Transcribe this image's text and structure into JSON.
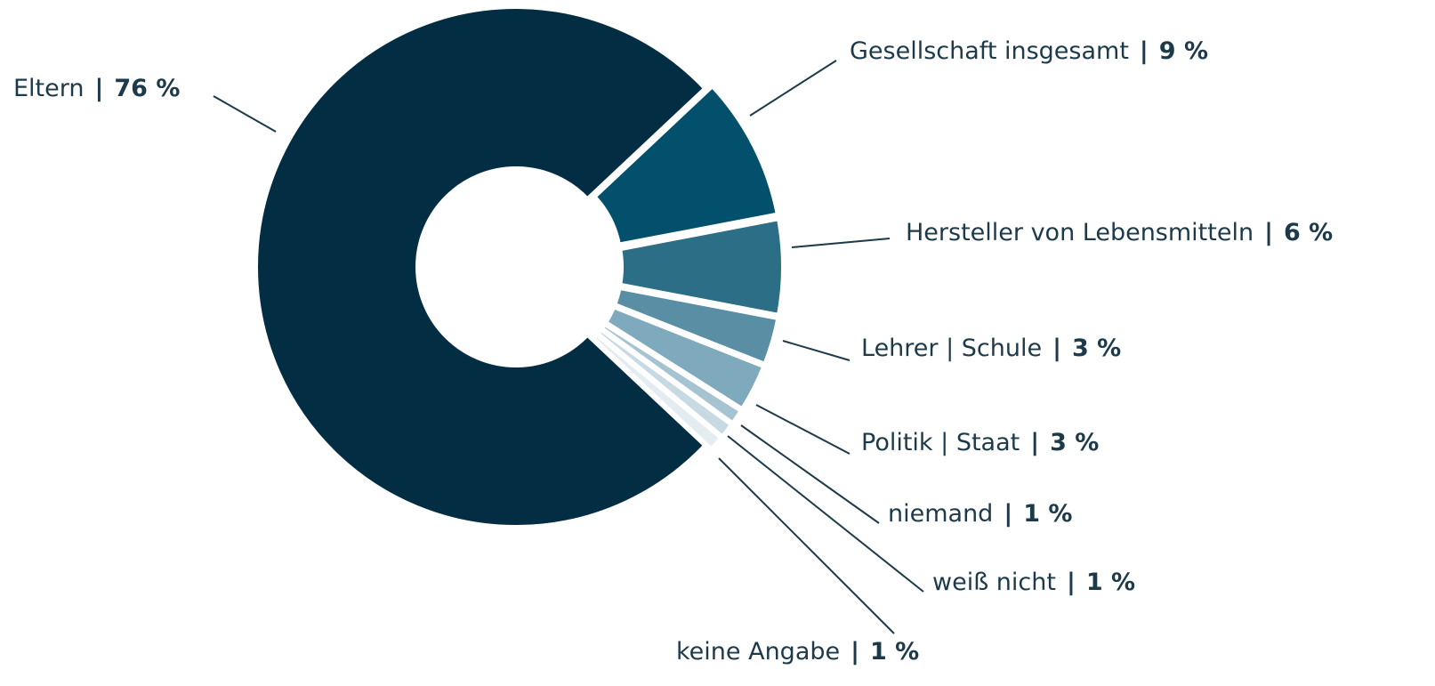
{
  "chart_data": {
    "type": "donut",
    "categories": [
      "Eltern",
      "Gesellschaft insgesamt",
      "Hersteller von Lebensmitteln",
      "Lehrer | Schule",
      "Politik | Staat",
      "niemand",
      "weiß nicht",
      "keine Angabe"
    ],
    "values": [
      76,
      9,
      6,
      3,
      3,
      1,
      1,
      1
    ],
    "value_labels": [
      "76 %",
      "9 %",
      "6 %",
      "3 %",
      "3 %",
      "1 %",
      "1 %",
      "1 %"
    ],
    "label_separator": "|",
    "colors": [
      "#032d42",
      "#02506b",
      "#2d6e87",
      "#5a8ea4",
      "#7fa9bd",
      "#a6c3d1",
      "#c7d9e2",
      "#e2ecf1"
    ]
  }
}
